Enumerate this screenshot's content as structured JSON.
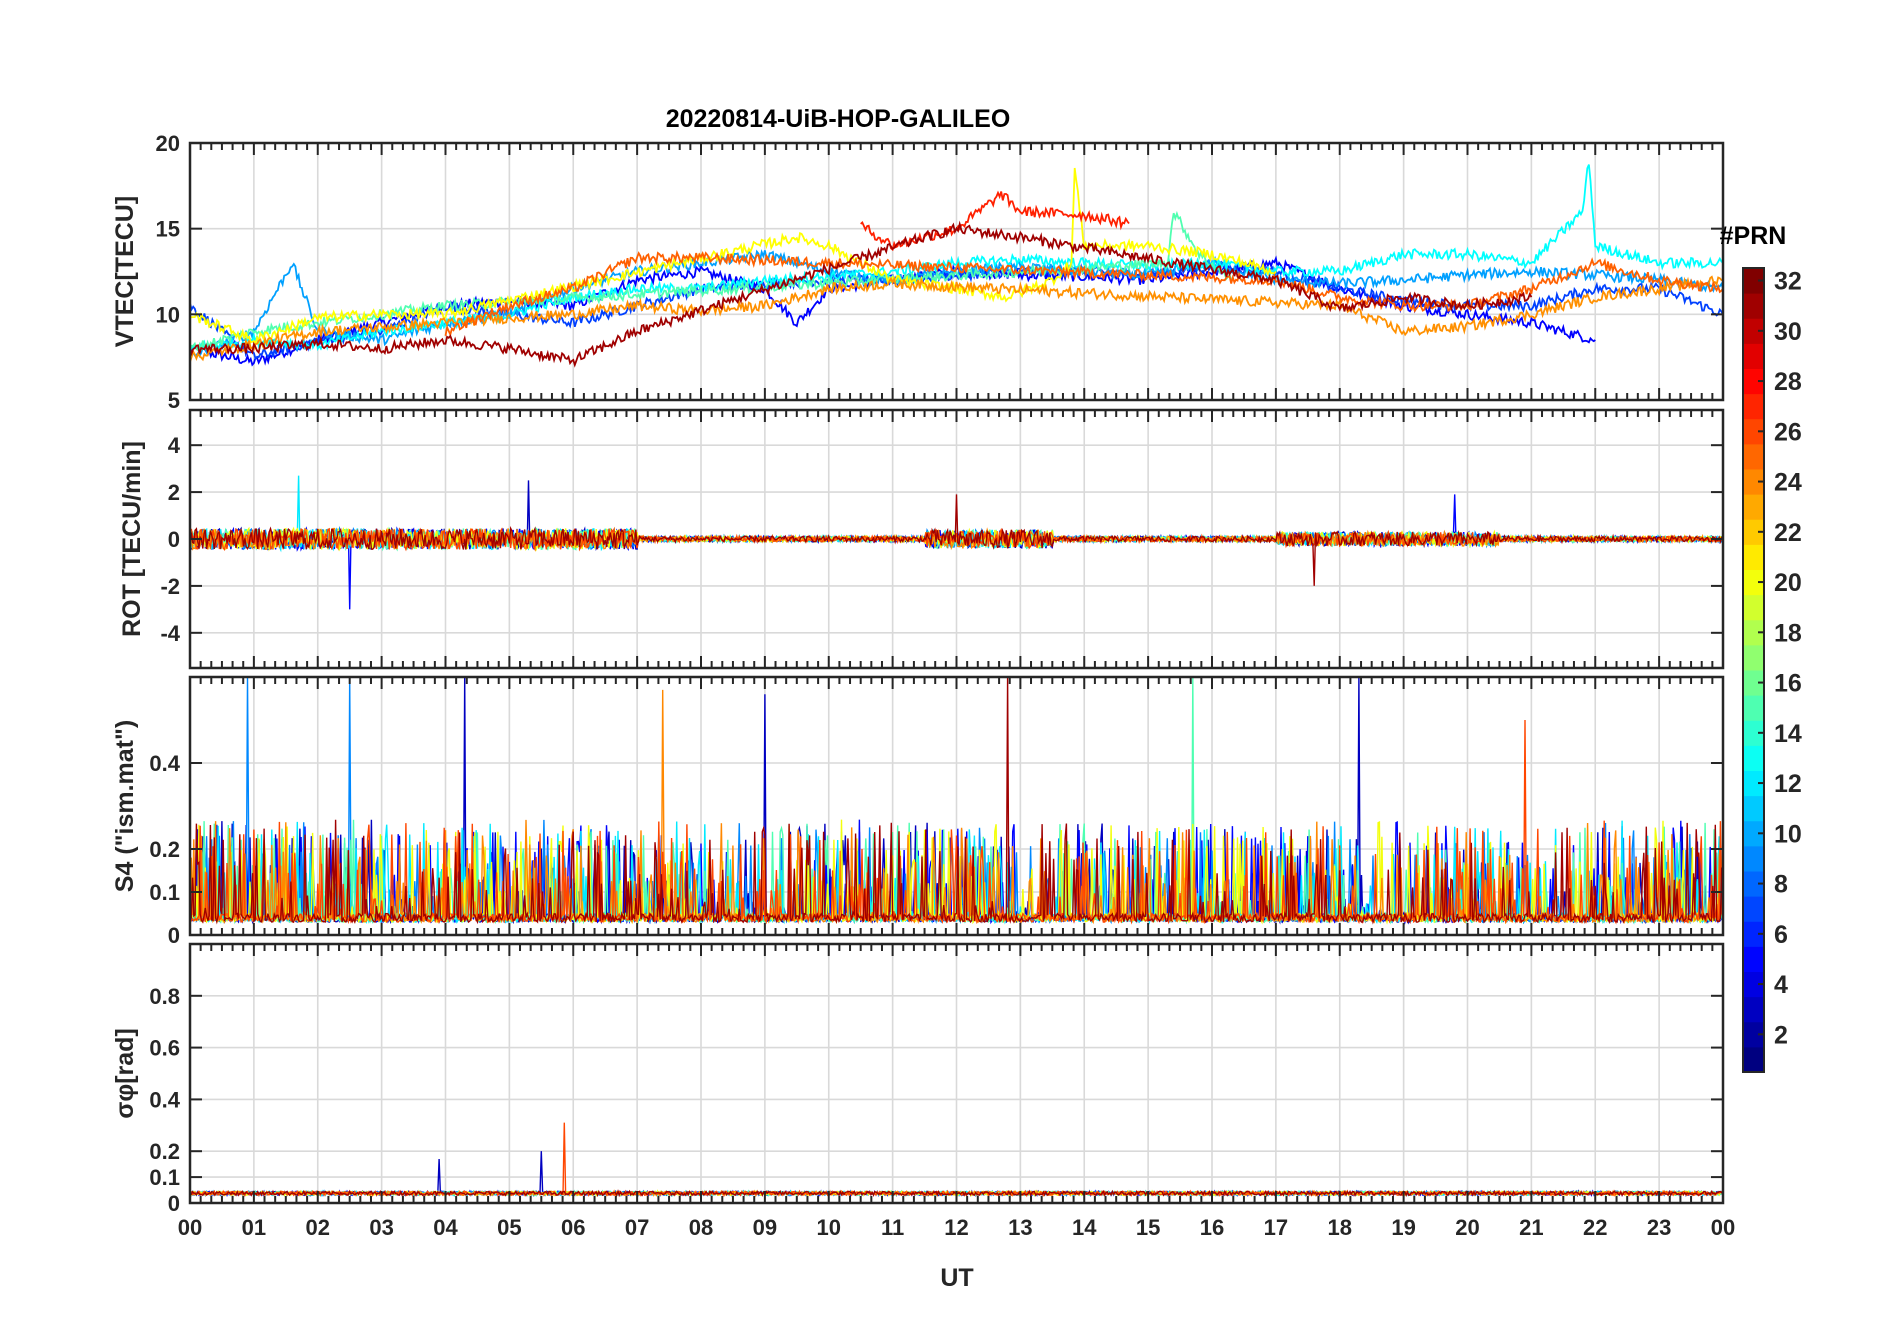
{
  "figure": {
    "title": "20220814-UiB-HOP-GALILEO",
    "x_label": "UT",
    "x_tick_labels": [
      "00",
      "01",
      "02",
      "03",
      "04",
      "05",
      "06",
      "07",
      "08",
      "09",
      "10",
      "11",
      "12",
      "13",
      "14",
      "15",
      "16",
      "17",
      "18",
      "19",
      "20",
      "21",
      "22",
      "23",
      "00"
    ]
  },
  "colorbar": {
    "label": "#PRN",
    "range": [
      1,
      32
    ],
    "ticks": [
      2,
      4,
      6,
      8,
      10,
      12,
      14,
      16,
      18,
      20,
      22,
      24,
      26,
      28,
      30,
      32
    ],
    "colormap": "jet"
  },
  "chart_data": [
    {
      "type": "line",
      "panel": "VTEC",
      "ylabel": "VTEC[TECU]",
      "xlim": [
        0,
        24
      ],
      "ylim": [
        5,
        20
      ],
      "yticks": [
        5,
        10,
        15,
        20
      ],
      "grid": true,
      "series_note_units": "x in UT hours",
      "series": [
        {
          "prn": 3,
          "color": "#0000ff",
          "x": [
            0,
            1,
            2,
            3,
            4,
            5,
            6,
            7,
            8,
            9,
            9.5,
            10,
            11,
            12,
            13,
            14,
            15,
            16,
            17,
            18,
            19,
            20,
            21,
            22
          ],
          "values": [
            8,
            7.2,
            8.5,
            9.5,
            10.5,
            10.8,
            10.5,
            12,
            12.5,
            11.5,
            9.5,
            11.5,
            12,
            12.5,
            12.3,
            12.2,
            12,
            12.5,
            13,
            11.5,
            10.5,
            10,
            9.5,
            8.5
          ]
        },
        {
          "prn": 5,
          "color": "#0040ff",
          "x": [
            0,
            1,
            2,
            3,
            4,
            5,
            6,
            7,
            8,
            9,
            10,
            11,
            12,
            13,
            14,
            15,
            16,
            17,
            18,
            19,
            20,
            21,
            22,
            23,
            24
          ],
          "values": [
            10.5,
            7.5,
            8.5,
            9,
            10.5,
            10,
            9.5,
            10.5,
            11.5,
            11.8,
            12,
            12,
            12.3,
            12.5,
            12.5,
            12.3,
            12.8,
            12.5,
            11.5,
            10.8,
            10.5,
            10.5,
            11.5,
            11.5,
            10
          ]
        },
        {
          "prn": 9,
          "color": "#00a0ff",
          "x": [
            0,
            1,
            1.6,
            2,
            3,
            4,
            5,
            6,
            7,
            8,
            9,
            10,
            11,
            12,
            13,
            14,
            15,
            16,
            17,
            18,
            19,
            20,
            21,
            22,
            23,
            24
          ],
          "values": [
            7.5,
            9,
            13,
            9,
            8.5,
            9.5,
            10,
            11.5,
            12.5,
            13,
            13.5,
            12.5,
            12,
            12.5,
            12.8,
            12.5,
            12.3,
            13,
            12,
            11.8,
            12,
            12.3,
            12.5,
            12.3,
            12,
            11.5
          ]
        },
        {
          "prn": 12,
          "color": "#00ffff",
          "x": [
            0,
            1,
            2,
            3,
            4,
            5,
            6,
            7,
            8,
            9,
            10,
            11,
            12,
            13,
            14,
            15,
            16,
            17,
            18,
            19,
            20,
            21,
            21.8,
            21.9,
            22,
            23,
            24
          ],
          "values": [
            8,
            8.5,
            8.2,
            9,
            9.5,
            10,
            11,
            11.5,
            11.5,
            12,
            12.2,
            12.5,
            13,
            13.2,
            13,
            12.8,
            13,
            12.5,
            12.5,
            13.5,
            13.5,
            13,
            16,
            19,
            14,
            13,
            13
          ]
        },
        {
          "prn": 15,
          "color": "#50ffb0",
          "x": [
            0,
            1,
            2,
            3,
            4,
            15.3,
            15.4,
            15.8,
            16.3
          ],
          "values": [
            8,
            9,
            9.5,
            10,
            10.5,
            13,
            16,
            13.5,
            12
          ]
        },
        {
          "prn": 20,
          "color": "#ffff00",
          "x": [
            0,
            1,
            2,
            3,
            4,
            9.5,
            10,
            11,
            12,
            12.8,
            13.5,
            13.8,
            13.85,
            14,
            15,
            16,
            17
          ],
          "values": [
            10,
            8.5,
            9.8,
            10,
            10,
            14.5,
            14,
            12,
            11.5,
            11,
            12,
            13,
            18.5,
            14,
            14,
            13.5,
            12.5
          ]
        },
        {
          "prn": 23,
          "color": "#ff9000",
          "x": [
            0,
            2,
            4,
            5,
            6,
            7,
            8,
            9,
            10,
            11,
            18,
            19,
            20,
            21,
            22,
            23,
            24
          ],
          "values": [
            7.5,
            9,
            9.5,
            9.8,
            10,
            10.5,
            10.2,
            10.5,
            11.5,
            11.8,
            10.5,
            9,
            9.3,
            10,
            11,
            11.5,
            12
          ]
        },
        {
          "prn": 25,
          "color": "#ff6000",
          "x": [
            4,
            5,
            6,
            7,
            8,
            17,
            18,
            19,
            20,
            21,
            22,
            23,
            24
          ],
          "values": [
            9,
            10.5,
            11.5,
            13.3,
            13.3,
            12,
            11,
            10.5,
            10.5,
            11.5,
            13,
            12,
            11.5
          ]
        },
        {
          "prn": 28,
          "color": "#ff2000",
          "x": [
            10.5,
            11,
            12,
            12.7,
            13,
            14,
            14.7
          ],
          "values": [
            15.2,
            14,
            15,
            17,
            16,
            15.8,
            15.3
          ]
        },
        {
          "prn": 31,
          "color": "#a00000",
          "x": [
            0,
            1,
            2,
            3,
            4,
            5,
            6,
            7,
            11.5,
            12,
            13,
            17,
            18,
            19,
            20,
            21
          ],
          "values": [
            8,
            8,
            8.3,
            8,
            8.5,
            8,
            7.3,
            9,
            14.5,
            15,
            14.5,
            12,
            10.3,
            11,
            10.5,
            11
          ]
        }
      ]
    },
    {
      "type": "line",
      "panel": "ROT",
      "ylabel": "ROT [TECU/min]",
      "xlim": [
        0,
        24
      ],
      "ylim": [
        -5.5,
        5.5
      ],
      "yticks": [
        -4,
        -2,
        0,
        2,
        4
      ],
      "grid": true,
      "description_level": "noisy around 0; spikes to about +2.7 near 01.7 UT, -3 near 02.5 UT, +2.5 near 05.3 UT, +1.9 near 12.0 UT and 19.8 UT, -2 near 17.6 UT"
    },
    {
      "type": "line",
      "panel": "S4",
      "ylabel": "S4 (\"ism.mat\")",
      "xlim": [
        0,
        24
      ],
      "ylim": [
        0,
        0.6
      ],
      "yticks": [
        0,
        0.1,
        0.2,
        0.4
      ],
      "grid": true,
      "peaks": [
        {
          "x": 0.9,
          "value": 0.6,
          "prn": 9
        },
        {
          "x": 2.5,
          "value": 0.6,
          "prn": 9
        },
        {
          "x": 4.3,
          "value": 0.6,
          "prn": 3
        },
        {
          "x": 7.4,
          "value": 0.57,
          "prn": 24
        },
        {
          "x": 9.0,
          "value": 0.56,
          "prn": 3
        },
        {
          "x": 12.8,
          "value": 0.6,
          "prn": 31
        },
        {
          "x": 15.7,
          "value": 0.6,
          "prn": 15
        },
        {
          "x": 18.3,
          "value": 0.6,
          "prn": 3
        },
        {
          "x": 20.9,
          "value": 0.5,
          "prn": 26
        }
      ]
    },
    {
      "type": "line",
      "panel": "sigma_phi",
      "ylabel": "σφ[rad]",
      "xlim": [
        0,
        24
      ],
      "ylim": [
        0,
        1
      ],
      "yticks": [
        0,
        0.1,
        0.2,
        0.4,
        0.6,
        0.8
      ],
      "grid": true,
      "peaks": [
        {
          "x": 3.9,
          "value": 0.17,
          "prn": 3
        },
        {
          "x": 5.5,
          "value": 0.2,
          "prn": 3
        },
        {
          "x": 5.85,
          "value": 0.31,
          "prn": 26
        }
      ]
    }
  ],
  "colors": {
    "axis": "#262626",
    "grid": "#d9d9d9",
    "background": "#ffffff"
  }
}
